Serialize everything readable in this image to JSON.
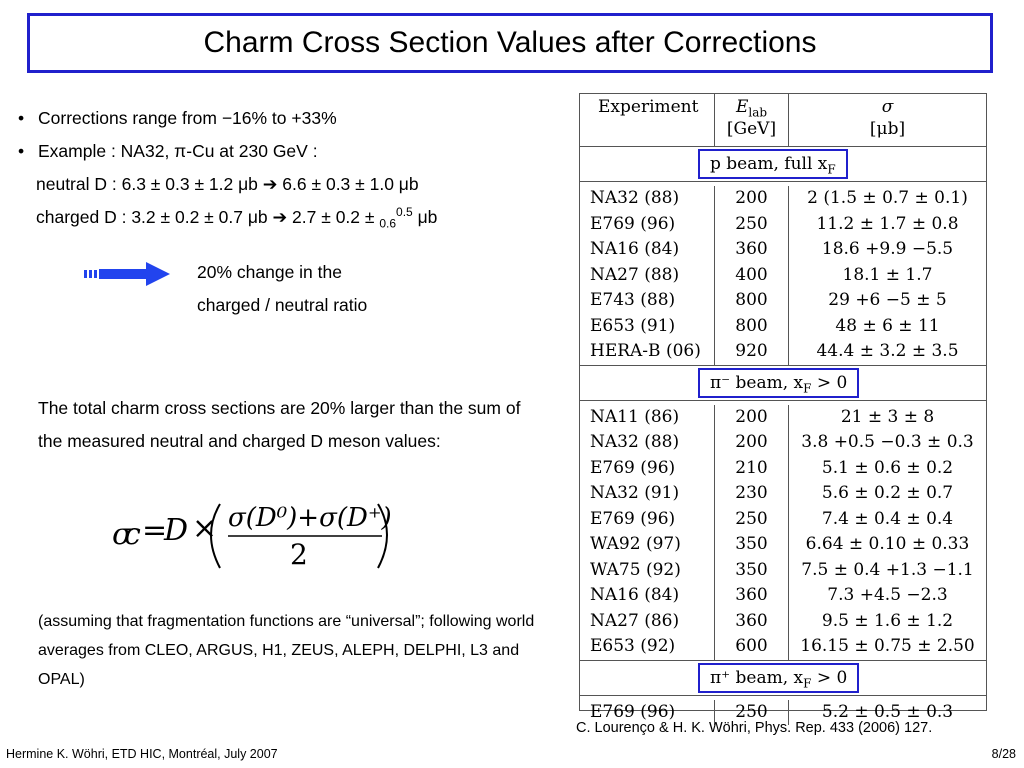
{
  "title": "Charm Cross Section Values after Corrections",
  "bullets": [
    "Corrections range from −16% to +33%",
    "Example : NA32, π-Cu at 230 GeV :"
  ],
  "neutral_line": "neutral D : 6.3 ± 0.3 ± 1.2 μb ➔ 6.6 ± 0.3 ± 1.0 μb",
  "charged_line": {
    "prefix": "charged D : 3.2 ± 0.2 ± 0.7 μb ➔ 2.7 ± 0.2 ± ",
    "sub": "0.6",
    "sup": "0.5",
    "suffix": " μb"
  },
  "ratio_text": [
    "20% change in the",
    "charged / neutral ratio"
  ],
  "paragraph": "The total charm cross sections are 20% larger than the sum of the measured neutral and charged D meson values:",
  "note": "(assuming that fragmentation functions are “universal”; following world averages from CLEO, ARGUS, H1, ZEUS, ALEPH, DELPHI, L3 and OPAL)",
  "table": {
    "headers": {
      "experiment": "Experiment",
      "energy": [
        "E",
        "lab",
        "[GeV]"
      ],
      "sigma": [
        "σ",
        "[μb]"
      ]
    },
    "sections": [
      {
        "label": "p beam, full x",
        "label_sub": "F",
        "rows": [
          [
            "NA32 (88)",
            "200",
            "2 (1.5 ± 0.7 ± 0.1)"
          ],
          [
            "E769 (96)",
            "250",
            "11.2 ± 1.7 ± 0.8"
          ],
          [
            "NA16 (84)",
            "360",
            "18.6 +9.9 −5.5"
          ],
          [
            "NA27 (88)",
            "400",
            "18.1 ± 1.7"
          ],
          [
            "E743 (88)",
            "800",
            "29 +6 −5 ± 5"
          ],
          [
            "E653 (91)",
            "800",
            "48 ± 6 ± 11"
          ],
          [
            "HERA-B (06)",
            "920",
            "44.4 ± 3.2 ± 3.5"
          ]
        ]
      },
      {
        "label": "π⁻ beam, x",
        "label_sub": "F",
        "label_tail": " > 0",
        "rows": [
          [
            "NA11 (86)",
            "200",
            "21 ± 3 ± 8"
          ],
          [
            "NA32 (88)",
            "200",
            "3.8 +0.5 −0.3 ± 0.3"
          ],
          [
            "E769 (96)",
            "210",
            "5.1 ± 0.6 ± 0.2"
          ],
          [
            "NA32 (91)",
            "230",
            "5.6 ± 0.2 ± 0.7"
          ],
          [
            "E769 (96)",
            "250",
            "7.4 ± 0.4 ± 0.4"
          ],
          [
            "WA92 (97)",
            "350",
            "6.64 ± 0.10 ± 0.33"
          ],
          [
            "WA75 (92)",
            "350",
            "7.5 ± 0.4 +1.3 −1.1"
          ],
          [
            "NA16 (84)",
            "360",
            "7.3 +4.5 −2.3"
          ],
          [
            "NA27 (86)",
            "360",
            "9.5 ± 1.6 ± 1.2"
          ],
          [
            "E653 (92)",
            "600",
            "16.15 ± 0.75 ± 2.50"
          ]
        ]
      },
      {
        "label": "π⁺ beam, x",
        "label_sub": "F",
        "label_tail": " > 0",
        "rows": [
          [
            "E769 (96)",
            "250",
            "5.2 ± 0.5 ± 0.3"
          ]
        ]
      }
    ]
  },
  "reference": "C. Lourenço & H. K. Wöhri, Phys. Rep. 433 (2006) 127.",
  "footer_left": "Hermine K. Wöhri, ETD HIC, Montréal, July 2007",
  "footer_right": "8/28",
  "colors": {
    "accent": "#2020cc",
    "arrow": "#2244ee"
  },
  "icons": {
    "arrow": "right-arrow-icon"
  }
}
